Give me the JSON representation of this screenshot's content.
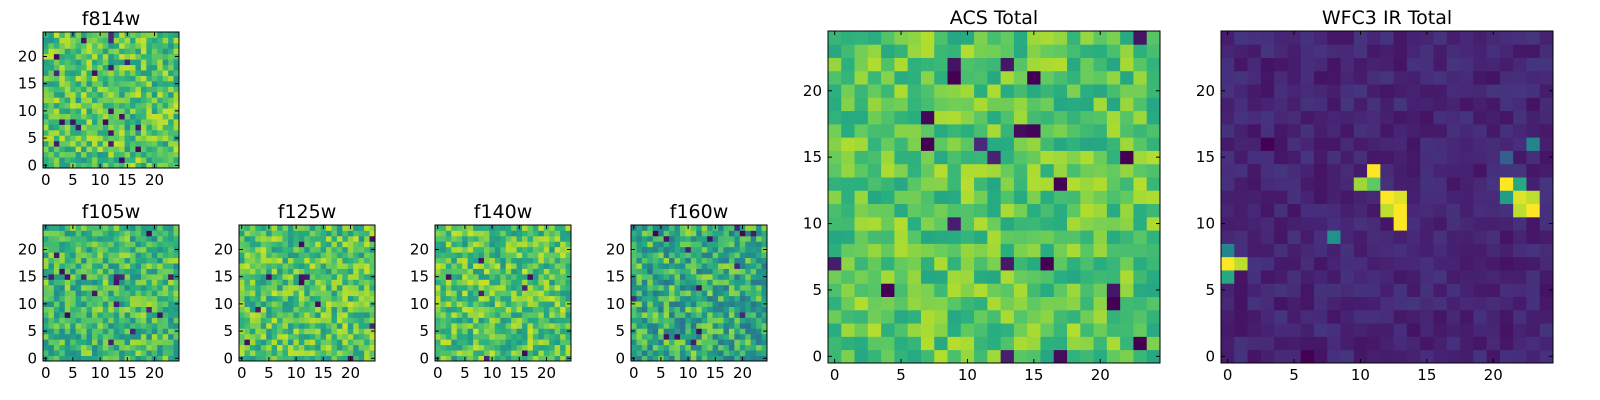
{
  "colormap": {
    "name": "viridis",
    "stops": [
      "#440154",
      "#472d7b",
      "#3b528b",
      "#2c728e",
      "#21918c",
      "#28ae80",
      "#5ec962",
      "#addc30",
      "#fde725"
    ]
  },
  "chart_data": [
    {
      "id": "f814w",
      "type": "heatmap",
      "title": "f814w",
      "grid_size": 25,
      "xlim": [
        0,
        25
      ],
      "ylim": [
        0,
        25
      ],
      "x_ticks": [
        "0",
        "5",
        "10",
        "15",
        "20"
      ],
      "y_ticks": [
        "0",
        "5",
        "10",
        "15",
        "20"
      ],
      "value_range": [
        0,
        1
      ],
      "base_level": 0.72,
      "noise": 0.2,
      "dark_fraction": 0.035,
      "seed": 11,
      "features": []
    },
    {
      "id": "f105w",
      "type": "heatmap",
      "title": "f105w",
      "grid_size": 25,
      "xlim": [
        0,
        25
      ],
      "ylim": [
        0,
        25
      ],
      "x_ticks": [
        "0",
        "5",
        "10",
        "15",
        "20"
      ],
      "y_ticks": [
        "0",
        "5",
        "10",
        "15",
        "20"
      ],
      "value_range": [
        0,
        1
      ],
      "base_level": 0.68,
      "noise": 0.2,
      "dark_fraction": 0.02,
      "seed": 23,
      "features": []
    },
    {
      "id": "f125w",
      "type": "heatmap",
      "title": "f125w",
      "grid_size": 25,
      "xlim": [
        0,
        25
      ],
      "ylim": [
        0,
        25
      ],
      "x_ticks": [
        "0",
        "5",
        "10",
        "15",
        "20"
      ],
      "y_ticks": [
        "0",
        "5",
        "10",
        "15",
        "20"
      ],
      "value_range": [
        0,
        1
      ],
      "base_level": 0.72,
      "noise": 0.2,
      "dark_fraction": 0.02,
      "seed": 37,
      "features": []
    },
    {
      "id": "f140w",
      "type": "heatmap",
      "title": "f140w",
      "grid_size": 25,
      "xlim": [
        0,
        25
      ],
      "ylim": [
        0,
        25
      ],
      "x_ticks": [
        "0",
        "5",
        "10",
        "15",
        "20"
      ],
      "y_ticks": [
        "0",
        "5",
        "10",
        "15",
        "20"
      ],
      "value_range": [
        0,
        1
      ],
      "base_level": 0.72,
      "noise": 0.2,
      "dark_fraction": 0.015,
      "seed": 41,
      "features": []
    },
    {
      "id": "f160w",
      "type": "heatmap",
      "title": "f160w",
      "grid_size": 25,
      "xlim": [
        0,
        25
      ],
      "ylim": [
        0,
        25
      ],
      "x_ticks": [
        "0",
        "5",
        "10",
        "15",
        "20"
      ],
      "y_ticks": [
        "0",
        "5",
        "10",
        "15",
        "20"
      ],
      "value_range": [
        0,
        1
      ],
      "base_level": 0.62,
      "noise": 0.24,
      "dark_fraction": 0.03,
      "seed": 53,
      "features": []
    },
    {
      "id": "acs-total",
      "type": "heatmap",
      "title": "ACS Total",
      "grid_size": 25,
      "xlim": [
        0,
        25
      ],
      "ylim": [
        0,
        25
      ],
      "x_ticks": [
        "0",
        "5",
        "10",
        "15",
        "20"
      ],
      "y_ticks": [
        "0",
        "5",
        "10",
        "15",
        "20"
      ],
      "value_range": [
        0,
        1
      ],
      "base_level": 0.74,
      "noise": 0.15,
      "dark_fraction": 0.018,
      "seed": 67,
      "features": [
        {
          "x": 9,
          "y": 21,
          "v": 0.0
        },
        {
          "x": 7,
          "y": 16,
          "v": 0.0
        },
        {
          "x": 15,
          "y": 21,
          "v": 0.0
        },
        {
          "x": 17,
          "y": 13,
          "v": 0.0
        },
        {
          "x": 22,
          "y": 15,
          "v": 0.0
        },
        {
          "x": 16,
          "y": 7,
          "v": 0.0
        },
        {
          "x": 21,
          "y": 4,
          "v": 0.0
        },
        {
          "x": 23,
          "y": 1,
          "v": 0.0
        },
        {
          "x": 4,
          "y": 5,
          "v": 0.0
        },
        {
          "x": 12,
          "y": 15,
          "v": 0.1
        }
      ]
    },
    {
      "id": "wfc3-ir-total",
      "type": "heatmap",
      "title": "WFC3 IR Total",
      "grid_size": 25,
      "xlim": [
        0,
        25
      ],
      "ylim": [
        0,
        25
      ],
      "x_ticks": [
        "0",
        "5",
        "10",
        "15",
        "20"
      ],
      "y_ticks": [
        "0",
        "5",
        "10",
        "15",
        "20"
      ],
      "value_range": [
        0,
        1
      ],
      "base_level": 0.1,
      "noise": 0.05,
      "dark_fraction": 0.0,
      "seed": 79,
      "features": [
        {
          "x": 11,
          "y": 14,
          "v": 1.0
        },
        {
          "x": 10,
          "y": 13,
          "v": 0.85
        },
        {
          "x": 11,
          "y": 13,
          "v": 0.75
        },
        {
          "x": 12,
          "y": 12,
          "v": 1.0
        },
        {
          "x": 13,
          "y": 12,
          "v": 0.95
        },
        {
          "x": 12,
          "y": 11,
          "v": 0.9
        },
        {
          "x": 13,
          "y": 11,
          "v": 1.0
        },
        {
          "x": 13,
          "y": 10,
          "v": 1.0
        },
        {
          "x": 21,
          "y": 13,
          "v": 1.0
        },
        {
          "x": 22,
          "y": 13,
          "v": 0.6
        },
        {
          "x": 21,
          "y": 12,
          "v": 0.55
        },
        {
          "x": 22,
          "y": 12,
          "v": 0.95
        },
        {
          "x": 22,
          "y": 11,
          "v": 0.9
        },
        {
          "x": 23,
          "y": 12,
          "v": 0.9
        },
        {
          "x": 23,
          "y": 11,
          "v": 1.0
        },
        {
          "x": 0,
          "y": 7,
          "v": 1.0
        },
        {
          "x": 0,
          "y": 8,
          "v": 0.45
        },
        {
          "x": 0,
          "y": 6,
          "v": 0.6
        },
        {
          "x": 1,
          "y": 7,
          "v": 0.9
        },
        {
          "x": 8,
          "y": 9,
          "v": 0.5
        },
        {
          "x": 23,
          "y": 16,
          "v": 0.45
        },
        {
          "x": 21,
          "y": 15,
          "v": 0.3
        },
        {
          "x": 6,
          "y": 0,
          "v": 0.0
        },
        {
          "x": 3,
          "y": 16,
          "v": 0.0
        }
      ]
    }
  ]
}
